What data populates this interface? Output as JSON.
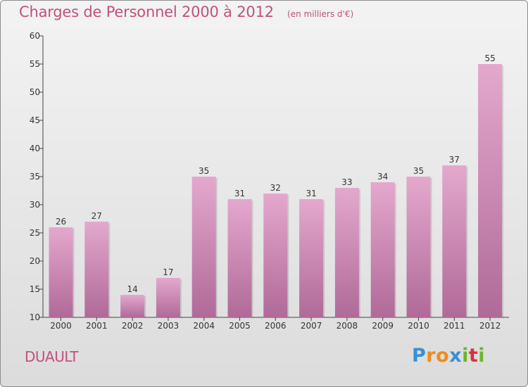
{
  "title": "Charges de Personnel 2000 à 2012",
  "subtitle": "(en milliers d'€)",
  "commune": "DUAULT",
  "logo": {
    "letters": [
      "P",
      "r",
      "o",
      "x",
      "i",
      "t",
      "i"
    ],
    "colors": [
      "#3a8fd6",
      "#f08a1e",
      "#f08a1e",
      "#3a8fd6",
      "#6fb52c",
      "#d8323c",
      "#6fb52c"
    ]
  },
  "colors": {
    "bar_top": "#e4a8cd",
    "bar_bottom": "#b06a98",
    "title": "#c2507e"
  },
  "chart_data": {
    "type": "bar",
    "categories": [
      "2000",
      "2001",
      "2002",
      "2003",
      "2004",
      "2005",
      "2006",
      "2007",
      "2008",
      "2009",
      "2010",
      "2011",
      "2012"
    ],
    "values": [
      26,
      27,
      14,
      17,
      35,
      31,
      32,
      31,
      33,
      34,
      35,
      37,
      55
    ],
    "ylim": [
      10,
      60
    ],
    "yticks": [
      10,
      15,
      20,
      25,
      30,
      35,
      40,
      45,
      50,
      55,
      60
    ],
    "grid": false
  }
}
